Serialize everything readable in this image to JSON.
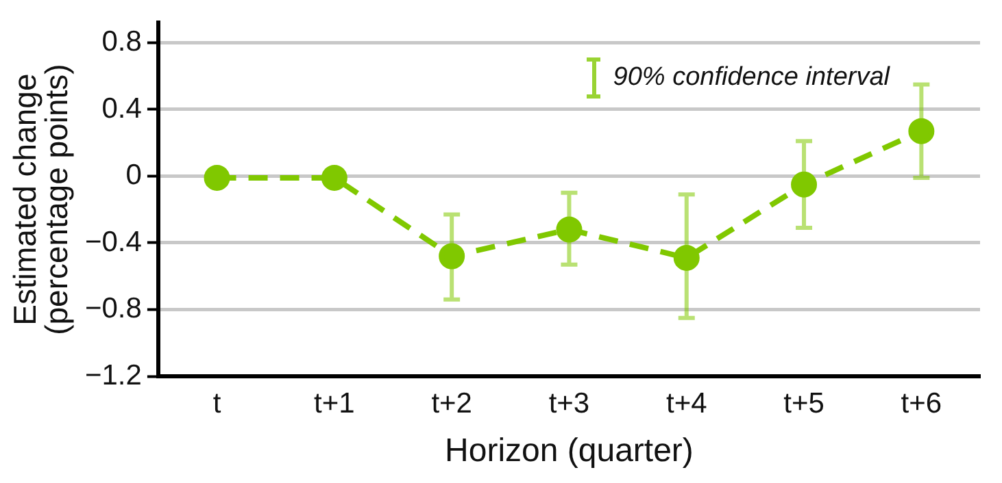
{
  "chart_data": {
    "type": "line",
    "xlabel": "Horizon (quarter)",
    "ylabel": "Estimated change (percentage points)",
    "categories": [
      "t",
      "t+1",
      "t+2",
      "t+3",
      "t+4",
      "t+5",
      "t+6"
    ],
    "series": [
      {
        "color": "#80c800",
        "values": [
          -0.01,
          -0.01,
          -0.48,
          -0.32,
          -0.49,
          -0.05,
          0.27
        ],
        "errors": [
          null,
          null,
          [
            -0.74,
            -0.23
          ],
          [
            -0.53,
            -0.1
          ],
          [
            -0.85,
            -0.11
          ],
          [
            -0.31,
            0.21
          ],
          [
            -0.01,
            0.55
          ]
        ]
      }
    ],
    "annotations": [
      "90% confidence interval"
    ],
    "ylim": [
      -1.2,
      0.92
    ],
    "yticks": [
      {
        "value": 0.8,
        "label": "0.8"
      },
      {
        "value": 0.4,
        "label": "0.4"
      },
      {
        "value": 0,
        "label": "0"
      },
      {
        "value": -0.4,
        "label": "−0.4"
      },
      {
        "value": -0.8,
        "label": "−0.8"
      },
      {
        "value": -1.2,
        "label": "−1.2"
      }
    ],
    "grid": "y",
    "marker": "circle",
    "line_style": "dashed"
  }
}
